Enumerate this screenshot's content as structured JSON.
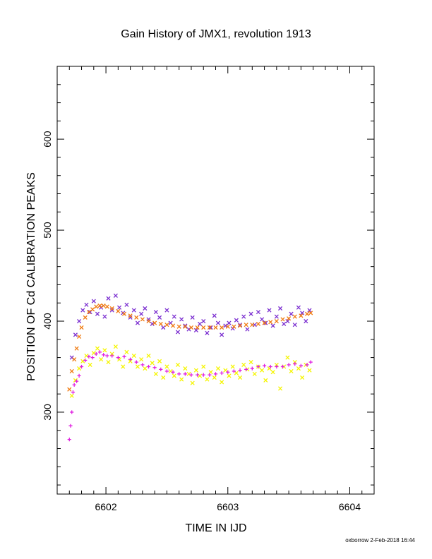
{
  "chart_data": {
    "type": "scatter",
    "title": "Gain History of JMX1, revolution 1913",
    "xlabel": "TIME IN IJD",
    "ylabel": "POSITION OF Cd CALIBRATION PEAKS",
    "xlim": [
      6601.6,
      6604.2
    ],
    "ylim": [
      210,
      680
    ],
    "x_ticks": [
      6602,
      6603,
      6604
    ],
    "y_ticks": [
      300,
      400,
      500,
      600
    ],
    "grid": false,
    "legend": "none",
    "footer": "oxborrow  2-Feb-2018 16:44",
    "series": [
      {
        "marker": "x",
        "color": "#7b2fd0",
        "x": [
          6601.72,
          6601.75,
          6601.78,
          6601.81,
          6601.84,
          6601.87,
          6601.9,
          6601.93,
          6601.96,
          6601.99,
          6602.02,
          6602.05,
          6602.08,
          6602.11,
          6602.14,
          6602.17,
          6602.2,
          6602.23,
          6602.26,
          6602.29,
          6602.32,
          6602.35,
          6602.38,
          6602.41,
          6602.44,
          6602.47,
          6602.5,
          6602.53,
          6602.56,
          6602.59,
          6602.62,
          6602.65,
          6602.68,
          6602.71,
          6602.74,
          6602.77,
          6602.8,
          6602.83,
          6602.86,
          6602.89,
          6602.92,
          6602.95,
          6602.98,
          6603.01,
          6603.04,
          6603.07,
          6603.1,
          6603.13,
          6603.16,
          6603.19,
          6603.22,
          6603.25,
          6603.28,
          6603.31,
          6603.34,
          6603.37,
          6603.4,
          6603.43,
          6603.46,
          6603.49,
          6603.52,
          6603.55,
          6603.58,
          6603.61,
          6603.64,
          6603.67
        ],
        "y": [
          360,
          385,
          400,
          412,
          418,
          410,
          422,
          408,
          415,
          405,
          425,
          412,
          428,
          415,
          409,
          418,
          404,
          412,
          398,
          408,
          414,
          402,
          397,
          410,
          404,
          393,
          412,
          398,
          405,
          388,
          402,
          395,
          391,
          404,
          390,
          397,
          400,
          387,
          393,
          406,
          398,
          385,
          395,
          398,
          392,
          401,
          396,
          405,
          391,
          408,
          396,
          410,
          402,
          398,
          412,
          395,
          405,
          414,
          397,
          400,
          408,
          396,
          415,
          409,
          400,
          412
        ]
      },
      {
        "marker": "x",
        "color": "#f5f500",
        "x": [
          6601.72,
          6601.75,
          6601.78,
          6601.81,
          6601.84,
          6601.87,
          6601.9,
          6601.93,
          6601.96,
          6601.99,
          6602.02,
          6602.05,
          6602.08,
          6602.11,
          6602.14,
          6602.17,
          6602.2,
          6602.23,
          6602.26,
          6602.29,
          6602.32,
          6602.35,
          6602.38,
          6602.41,
          6602.44,
          6602.47,
          6602.5,
          6602.53,
          6602.56,
          6602.59,
          6602.62,
          6602.65,
          6602.68,
          6602.71,
          6602.74,
          6602.77,
          6602.8,
          6602.83,
          6602.86,
          6602.89,
          6602.92,
          6602.95,
          6602.98,
          6603.01,
          6603.04,
          6603.07,
          6603.1,
          6603.13,
          6603.16,
          6603.19,
          6603.22,
          6603.25,
          6603.28,
          6603.31,
          6603.34,
          6603.37,
          6603.4,
          6603.43,
          6603.46,
          6603.49,
          6603.52,
          6603.55,
          6603.58,
          6603.61,
          6603.64,
          6603.67
        ],
        "y": [
          318,
          335,
          348,
          356,
          362,
          352,
          365,
          370,
          358,
          368,
          355,
          364,
          372,
          358,
          350,
          366,
          356,
          362,
          350,
          358,
          348,
          362,
          354,
          342,
          356,
          338,
          350,
          345,
          340,
          352,
          336,
          348,
          342,
          332,
          346,
          340,
          350,
          336,
          344,
          338,
          348,
          333,
          346,
          340,
          350,
          343,
          338,
          352,
          347,
          355,
          342,
          350,
          346,
          335,
          348,
          344,
          352,
          326,
          350,
          360,
          345,
          355,
          348,
          338,
          352,
          346
        ]
      },
      {
        "marker": "+",
        "color": "#e020e0",
        "x": [
          6601.7,
          6601.71,
          6601.72,
          6601.73,
          6601.74,
          6601.76,
          6601.78,
          6601.8,
          6601.83,
          6601.86,
          6601.89,
          6601.92,
          6601.95,
          6601.98,
          6602.01,
          6602.05,
          6602.1,
          6602.15,
          6602.2,
          6602.25,
          6602.3,
          6602.35,
          6602.4,
          6602.45,
          6602.5,
          6602.55,
          6602.6,
          6602.65,
          6602.7,
          6602.75,
          6602.8,
          6602.85,
          6602.9,
          6602.95,
          6603.0,
          6603.05,
          6603.1,
          6603.15,
          6603.2,
          6603.25,
          6603.3,
          6603.35,
          6603.4,
          6603.45,
          6603.5,
          6603.55,
          6603.6,
          6603.65,
          6603.68
        ],
        "y": [
          270,
          285,
          300,
          322,
          330,
          334,
          340,
          350,
          357,
          361,
          360,
          364,
          366,
          363,
          362,
          362,
          360,
          361,
          358,
          355,
          352,
          350,
          349,
          347,
          345,
          344,
          342,
          342,
          341,
          341,
          341,
          341,
          342,
          343,
          344,
          345,
          346,
          347,
          348,
          350,
          351,
          350,
          350,
          350,
          352,
          353,
          351,
          352,
          355
        ]
      },
      {
        "marker": "x",
        "color": "#f07a10",
        "x": [
          6601.7,
          6601.72,
          6601.74,
          6601.76,
          6601.78,
          6601.8,
          6601.83,
          6601.86,
          6601.89,
          6601.92,
          6601.95,
          6601.98,
          6602.01,
          6602.05,
          6602.1,
          6602.15,
          6602.2,
          6602.25,
          6602.3,
          6602.35,
          6602.4,
          6602.45,
          6602.5,
          6602.55,
          6602.6,
          6602.65,
          6602.7,
          6602.75,
          6602.8,
          6602.85,
          6602.9,
          6602.95,
          6603.0,
          6603.05,
          6603.1,
          6603.15,
          6603.2,
          6603.25,
          6603.3,
          6603.35,
          6603.4,
          6603.45,
          6603.5,
          6603.55,
          6603.6,
          6603.65,
          6603.68
        ],
        "y": [
          325,
          345,
          358,
          370,
          383,
          393,
          404,
          410,
          413,
          416,
          417,
          417,
          416,
          414,
          411,
          408,
          406,
          404,
          402,
          400,
          398,
          397,
          396,
          395,
          394,
          394,
          393,
          393,
          393,
          393,
          393,
          393,
          394,
          394,
          395,
          396,
          396,
          397,
          398,
          399,
          400,
          402,
          403,
          405,
          406,
          408,
          409
        ]
      }
    ]
  }
}
